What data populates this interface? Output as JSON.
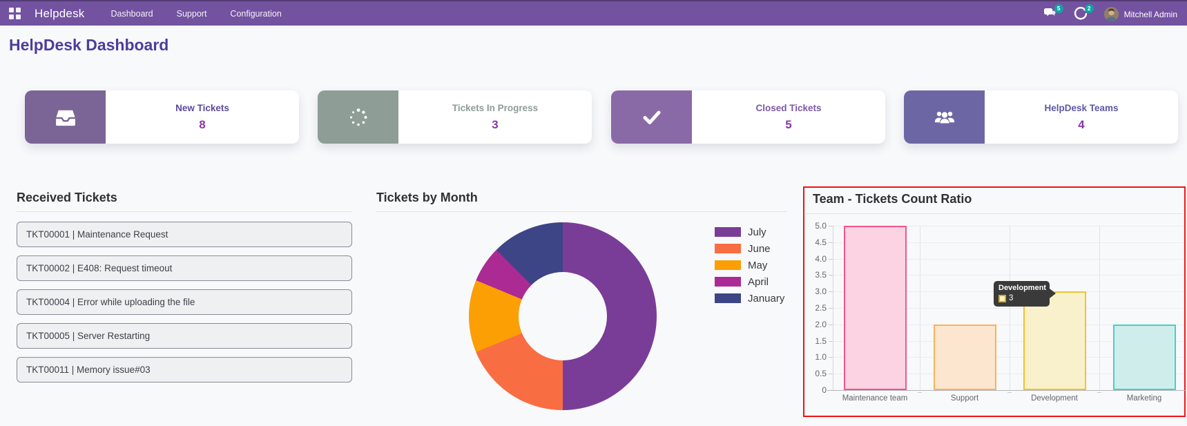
{
  "navbar": {
    "brand": "Helpdesk",
    "menu_items": [
      {
        "label": "Dashboard"
      },
      {
        "label": "Support"
      },
      {
        "label": "Configuration"
      }
    ],
    "messages_badge": "5",
    "activities_badge": "2",
    "user_name": "Mitchell Admin",
    "bg_color": "#7352a0",
    "badge_color": "#0fa3a3"
  },
  "page_title": "HelpDesk Dashboard",
  "kpi_value_color": "#8a36ac",
  "kpis": [
    {
      "label": "New Tickets",
      "value": "8",
      "icon": "inbox-icon",
      "block_color": "#7a6596",
      "label_color": "#5b4a9d"
    },
    {
      "label": "Tickets In Progress",
      "value": "3",
      "icon": "spinner-icon",
      "block_color": "#8e9d96",
      "label_color": "#8e9d96"
    },
    {
      "label": "Closed Tickets",
      "value": "5",
      "icon": "check-icon",
      "block_color": "#8a6aa6",
      "label_color": "#7d58a5"
    },
    {
      "label": "HelpDesk Teams",
      "value": "4",
      "icon": "users-icon",
      "block_color": "#6c67a4",
      "label_color": "#5d58a6"
    }
  ],
  "received_tickets": {
    "title": "Received Tickets",
    "items": [
      "TKT00001 | Maintenance Request",
      "TKT00002 | E408: Request timeout",
      "TKT00004 | Error while uploading the file",
      "TKT00005 | Server Restarting",
      "TKT00011 | Memory issue#03"
    ]
  },
  "chart_data": [
    {
      "type": "pie",
      "donut": true,
      "title": "Tickets by Month",
      "labels": [
        "July",
        "June",
        "May",
        "April",
        "January"
      ],
      "values": [
        8,
        3,
        2,
        1,
        2
      ],
      "colors": [
        "#793d98",
        "#f96d43",
        "#fb9f04",
        "#ab2a94",
        "#3d4586"
      ],
      "legend_position": "right"
    },
    {
      "type": "bar",
      "title": "Team - Tickets Count Ratio",
      "highlighted": true,
      "highlight_color": "#f01313",
      "categories": [
        "Maintenance team",
        "Support",
        "Development",
        "Marketing"
      ],
      "values": [
        5,
        2,
        3,
        2
      ],
      "bar_fill_colors": [
        "#fbd3e2",
        "#fce6cf",
        "#f8f1cb",
        "#cfeeeb"
      ],
      "bar_border_colors": [
        "#f2548c",
        "#fbaf5e",
        "#f2c12e",
        "#45cfc8"
      ],
      "ylim": [
        0,
        5
      ],
      "ytick_step": 0.5,
      "ytick_labels": [
        "0",
        "0.5",
        "1.0",
        "1.5",
        "2.0",
        "2.5",
        "3.0",
        "3.5",
        "4.0",
        "4.5",
        "5.0"
      ],
      "grid": true,
      "legend_position": "none",
      "tooltip": {
        "title": "Development",
        "value": "3",
        "swatch_fill": "#fdf3c0",
        "swatch_border": "#d9a927"
      }
    }
  ]
}
